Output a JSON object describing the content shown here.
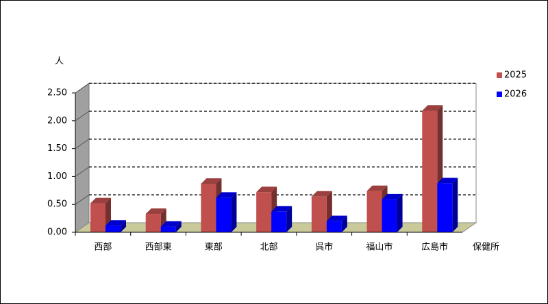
{
  "chart_data": {
    "type": "bar3d",
    "y_label": "人",
    "x_label": "保健所",
    "categories": [
      "西部",
      "西部東",
      "東部",
      "北部",
      "呉市",
      "福山市",
      "広島市"
    ],
    "series": [
      {
        "name": "2025",
        "color": "#c0504d",
        "values": [
          0.52,
          0.33,
          0.87,
          0.72,
          0.64,
          0.74,
          2.18
        ]
      },
      {
        "name": "2026",
        "color": "#0000ff",
        "values": [
          0.12,
          0.1,
          0.62,
          0.37,
          0.2,
          0.59,
          0.88
        ]
      }
    ],
    "ylim": [
      0,
      2.5
    ],
    "yticks": [
      {
        "value": 0,
        "label": "0.00"
      },
      {
        "value": 0.5,
        "label": "0.50"
      },
      {
        "value": 1,
        "label": "1.00"
      },
      {
        "value": 1.5,
        "label": "1.50"
      },
      {
        "value": 2,
        "label": "2.00"
      },
      {
        "value": 2.5,
        "label": "2.50"
      }
    ],
    "grid": true,
    "legend": "right"
  }
}
